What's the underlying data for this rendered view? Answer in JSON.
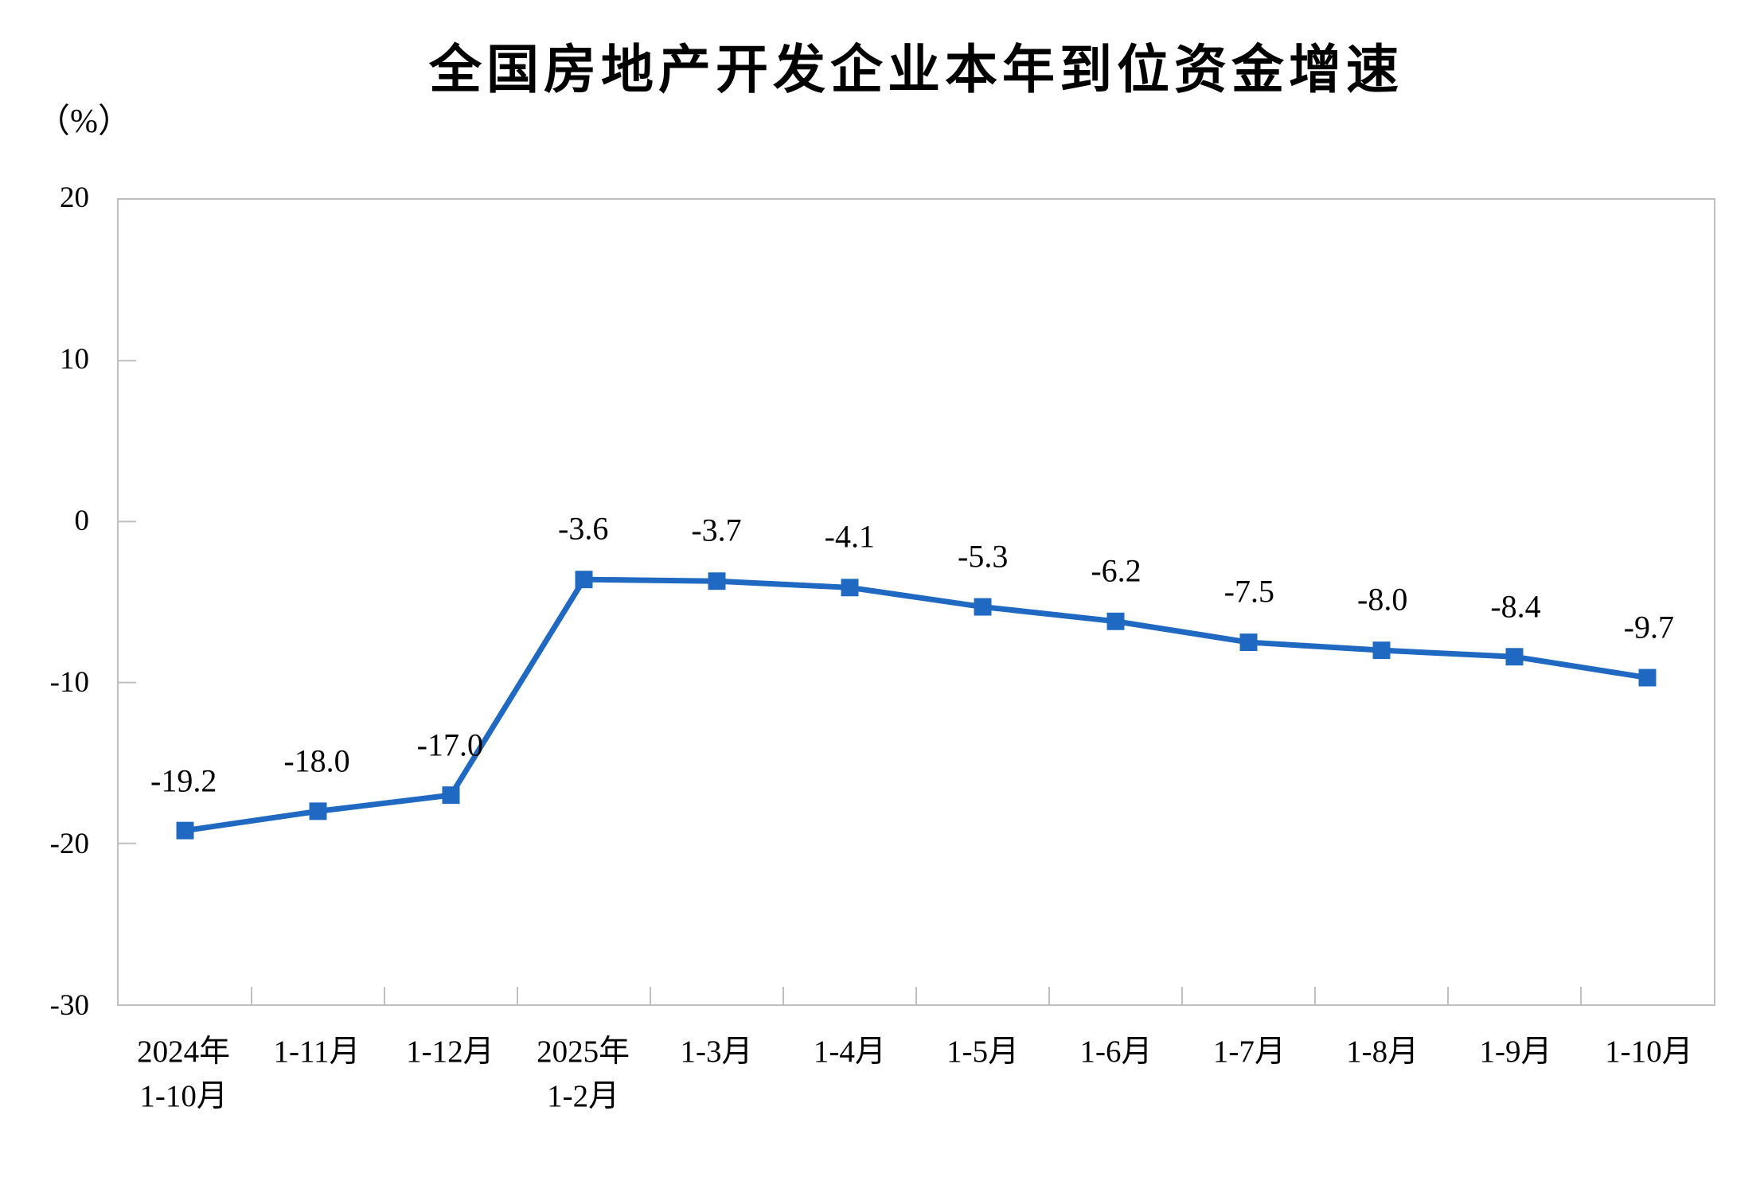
{
  "chart_data": {
    "type": "line",
    "title": "全国房地产开发企业本年到位资金增速",
    "ylabel": "（%）",
    "xlabel": "",
    "categories": [
      "2024年\n1-10月",
      "1-11月",
      "1-12月",
      "2025年\n1-2月",
      "1-3月",
      "1-4月",
      "1-5月",
      "1-6月",
      "1-7月",
      "1-8月",
      "1-9月",
      "1-10月"
    ],
    "values": [
      -19.2,
      -18.0,
      -17.0,
      -3.6,
      -3.7,
      -4.1,
      -5.3,
      -6.2,
      -7.5,
      -8.0,
      -8.4,
      -9.7
    ],
    "data_labels": [
      "-19.2",
      "-18.0",
      "-17.0",
      "-3.6",
      "-3.7",
      "-4.1",
      "-5.3",
      "-6.2",
      "-7.5",
      "-8.0",
      "-8.4",
      "-9.7"
    ],
    "ylim": [
      -30,
      20
    ],
    "yticks": [
      20,
      10,
      0,
      -10,
      -20,
      -30
    ],
    "ytick_labels": [
      "20",
      "10",
      "0",
      "-10",
      "-20",
      "-30"
    ],
    "grid": false,
    "legend": "none",
    "marker": "square",
    "colors": {
      "line": "#1F69C3",
      "axis": "#BFBFBF",
      "text": "#000000",
      "background": "#FFFFFF"
    }
  }
}
